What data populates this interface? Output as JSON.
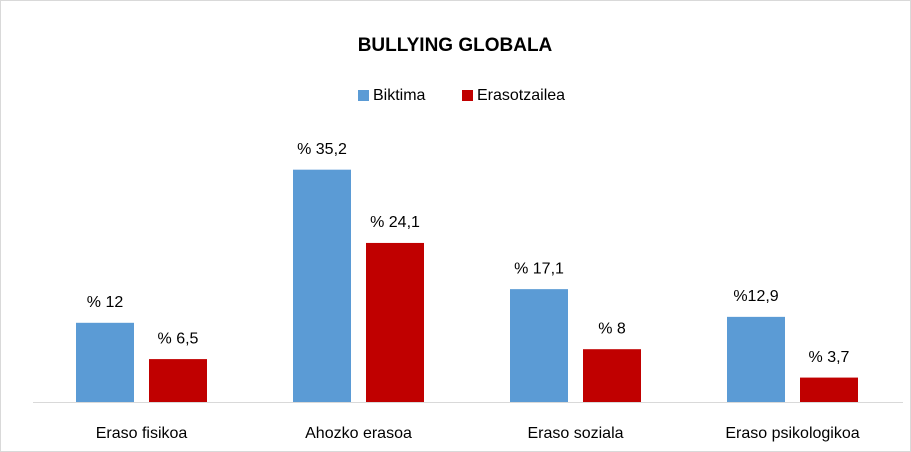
{
  "chart_data": {
    "type": "bar",
    "title": "BULLYING GLOBALA",
    "categories": [
      "Eraso fisikoa",
      "Ahozko erasoa",
      "Eraso soziala",
      "Eraso psikologikoa"
    ],
    "series": [
      {
        "name": "Biktima",
        "color": "#5b9bd5",
        "values": [
          12,
          35.2,
          17.1,
          12.9
        ],
        "value_labels": [
          "% 12",
          "% 35,2",
          "% 17,1",
          "%12,9"
        ]
      },
      {
        "name": "Erasotzailea",
        "color": "#c00000",
        "values": [
          6.5,
          24.1,
          8,
          3.7
        ],
        "value_labels": [
          "% 6,5",
          "% 24,1",
          "% 8",
          "% 3,7"
        ]
      }
    ],
    "legend": "top"
  }
}
